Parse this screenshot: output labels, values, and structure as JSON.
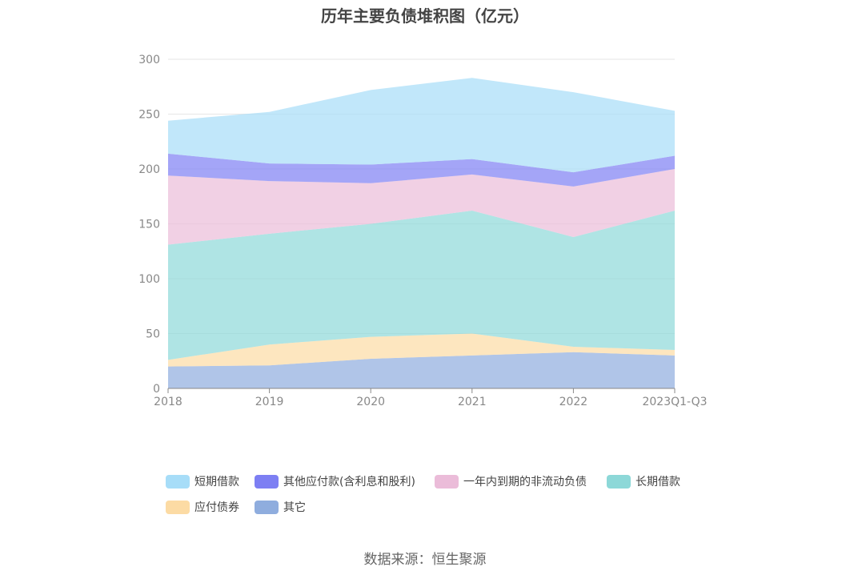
{
  "chart_data": {
    "type": "area",
    "stacked": true,
    "title": "历年主要负债堆积图（亿元）",
    "categories": [
      "2018",
      "2019",
      "2020",
      "2021",
      "2022",
      "2023Q1-Q3"
    ],
    "ylim": [
      0,
      300
    ],
    "yticks": [
      "0",
      "50",
      "100",
      "150",
      "200",
      "250",
      "300"
    ],
    "grid": true,
    "legend_position": "bottom",
    "series": [
      {
        "name": "其它",
        "color": "#8fadde",
        "values": [
          20,
          21,
          27,
          30,
          33,
          30
        ]
      },
      {
        "name": "应付债券",
        "color": "#fcdba4",
        "values": [
          6,
          19,
          20,
          20,
          5,
          5
        ]
      },
      {
        "name": "长期借款",
        "color": "#8dd8d8",
        "values": [
          105,
          101,
          103,
          112,
          100,
          127
        ]
      },
      {
        "name": "一年内到期的非流动负债",
        "color": "#ebbcd9",
        "values": [
          63,
          48,
          37,
          33,
          46,
          38
        ]
      },
      {
        "name": "其他应付款(含利息和股利)",
        "color": "#7d7ff3",
        "values": [
          20,
          16,
          17,
          14,
          13,
          12
        ]
      },
      {
        "name": "短期借款",
        "color": "#a7ddf8",
        "values": [
          30,
          47,
          68,
          74,
          73,
          41
        ]
      }
    ]
  },
  "legend": [
    {
      "label": "短期借款",
      "color": "#a7ddf8"
    },
    {
      "label": "其他应付款(含利息和股利)",
      "color": "#7d7ff3"
    },
    {
      "label": "一年内到期的非流动负债",
      "color": "#ebbcd9"
    },
    {
      "label": "长期借款",
      "color": "#8dd8d8"
    },
    {
      "label": "应付债券",
      "color": "#fcdba4"
    },
    {
      "label": "其它",
      "color": "#8fadde"
    }
  ],
  "source": "数据来源：恒生聚源"
}
